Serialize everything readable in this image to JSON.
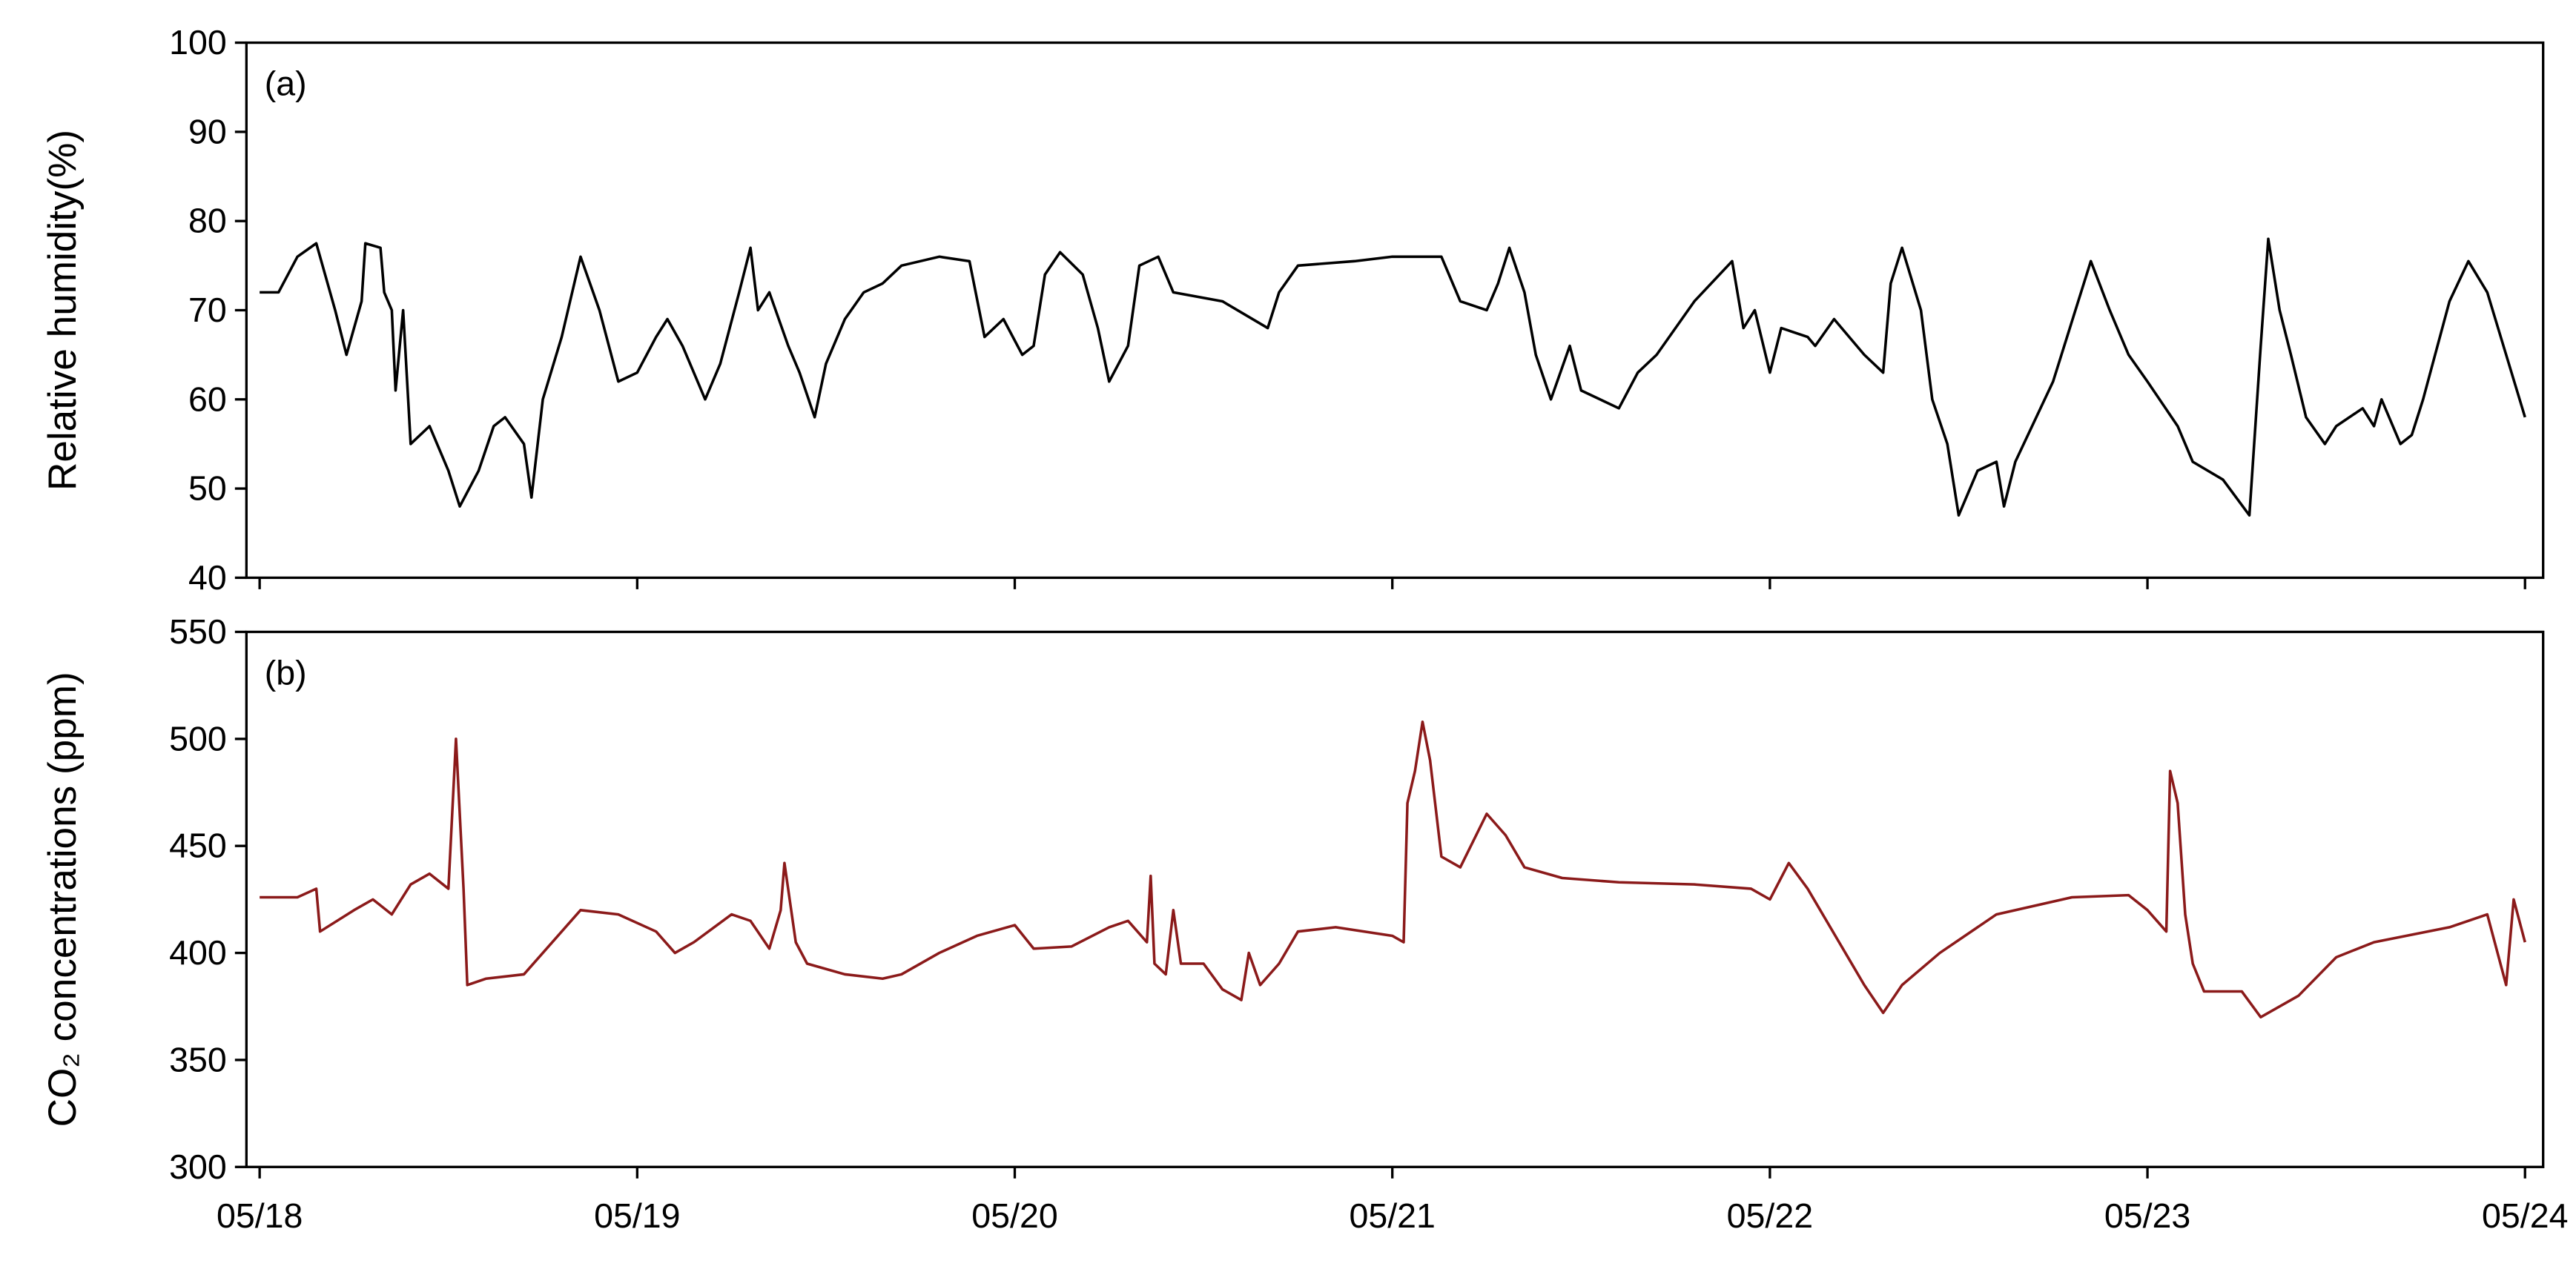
{
  "chart_data": [
    {
      "type": "line",
      "panel_label": "(a)",
      "y_label": "Relative humidity(%)",
      "color": "#000000",
      "xlim": [
        17.965,
        24.048
      ],
      "xticks": [
        18,
        19,
        20,
        21,
        22,
        23,
        24
      ],
      "ylim": [
        40,
        100
      ],
      "yticks": [
        40,
        50,
        60,
        70,
        80,
        90,
        100
      ],
      "x": [
        18.0,
        18.05,
        18.1,
        18.15,
        18.2,
        18.23,
        18.27,
        18.28,
        18.32,
        18.33,
        18.35,
        18.36,
        18.38,
        18.4,
        18.45,
        18.5,
        18.53,
        18.58,
        18.62,
        18.65,
        18.7,
        18.72,
        18.75,
        18.8,
        18.85,
        18.9,
        18.95,
        19.0,
        19.05,
        19.08,
        19.12,
        19.18,
        19.22,
        19.27,
        19.3,
        19.32,
        19.35,
        19.4,
        19.43,
        19.47,
        19.5,
        19.55,
        19.6,
        19.65,
        19.7,
        19.8,
        19.88,
        19.92,
        19.97,
        20.02,
        20.05,
        20.08,
        20.12,
        20.18,
        20.22,
        20.25,
        20.3,
        20.33,
        20.38,
        20.42,
        20.55,
        20.67,
        20.7,
        20.75,
        20.9,
        21.0,
        21.13,
        21.18,
        21.25,
        21.28,
        21.31,
        21.35,
        21.38,
        21.42,
        21.47,
        21.5,
        21.55,
        21.6,
        21.65,
        21.7,
        21.8,
        21.9,
        21.93,
        21.96,
        22.0,
        22.03,
        22.1,
        22.12,
        22.17,
        22.25,
        22.3,
        22.32,
        22.35,
        22.4,
        22.43,
        22.47,
        22.5,
        22.55,
        22.6,
        22.62,
        22.65,
        22.75,
        22.85,
        22.9,
        22.95,
        23.0,
        23.08,
        23.12,
        23.2,
        23.27,
        23.3,
        23.32,
        23.35,
        23.38,
        23.42,
        23.47,
        23.5,
        23.57,
        23.6,
        23.62,
        23.67,
        23.7,
        23.73,
        23.8,
        23.85,
        23.9,
        23.95,
        24.0
      ],
      "values": [
        72,
        72,
        76,
        77.5,
        70,
        65,
        71,
        77.5,
        77,
        72,
        70,
        61,
        70,
        55,
        57,
        52,
        48,
        52,
        57,
        58,
        55,
        49,
        60,
        67,
        76,
        70,
        62,
        63,
        67,
        69,
        66,
        60,
        64,
        72,
        77,
        70,
        72,
        66,
        63,
        58,
        64,
        69,
        72,
        73,
        75,
        76,
        75.5,
        67,
        69,
        65,
        66,
        74,
        76.5,
        74,
        68,
        62,
        66,
        75,
        76,
        72,
        71,
        68,
        72,
        75,
        75.5,
        76,
        76,
        71,
        70,
        73,
        77,
        72,
        65,
        60,
        66,
        61,
        60,
        59,
        63,
        65,
        71,
        75.5,
        68,
        70,
        63,
        68,
        67,
        66,
        69,
        65,
        63,
        73,
        77,
        70,
        60,
        55,
        47,
        52,
        53,
        48,
        53,
        62,
        75.5,
        70,
        65,
        62,
        57,
        53,
        51,
        47,
        66,
        78,
        70,
        65,
        58,
        55,
        57,
        59,
        57,
        60,
        55,
        56,
        60,
        71,
        75.5,
        72,
        65,
        58
      ]
    },
    {
      "type": "line",
      "panel_label": "(b)",
      "y_label": "CO₂ concentrations (ppm)",
      "color": "#8b1a1a",
      "xlim": [
        17.965,
        24.048
      ],
      "xticks": [
        {
          "value": 18,
          "label": "05/18"
        },
        {
          "value": 19,
          "label": "05/19"
        },
        {
          "value": 20,
          "label": "05/20"
        },
        {
          "value": 21,
          "label": "05/21"
        },
        {
          "value": 22,
          "label": "05/22"
        },
        {
          "value": 23,
          "label": "05/23"
        },
        {
          "value": 24,
          "label": "05/24"
        }
      ],
      "ylim": [
        300,
        550
      ],
      "yticks": [
        300,
        350,
        400,
        450,
        500,
        550
      ],
      "x": [
        18.0,
        18.1,
        18.15,
        18.16,
        18.25,
        18.3,
        18.35,
        18.4,
        18.45,
        18.5,
        18.52,
        18.54,
        18.55,
        18.6,
        18.7,
        18.75,
        18.85,
        18.95,
        19.05,
        19.1,
        19.15,
        19.25,
        19.3,
        19.35,
        19.38,
        19.39,
        19.42,
        19.45,
        19.55,
        19.65,
        19.7,
        19.8,
        19.9,
        20.0,
        20.05,
        20.15,
        20.25,
        20.3,
        20.35,
        20.36,
        20.37,
        20.4,
        20.42,
        20.44,
        20.5,
        20.55,
        20.6,
        20.62,
        20.65,
        20.7,
        20.75,
        20.85,
        21.0,
        21.03,
        21.04,
        21.06,
        21.08,
        21.1,
        21.13,
        21.18,
        21.25,
        21.3,
        21.35,
        21.45,
        21.6,
        21.8,
        21.95,
        22.0,
        22.05,
        22.1,
        22.2,
        22.25,
        22.3,
        22.35,
        22.45,
        22.6,
        22.8,
        22.95,
        23.0,
        23.05,
        23.06,
        23.08,
        23.1,
        23.12,
        23.15,
        23.25,
        23.3,
        23.4,
        23.5,
        23.6,
        23.8,
        23.9,
        23.95,
        23.97,
        24.0
      ],
      "values": [
        426,
        426,
        430,
        410,
        420,
        425,
        418,
        432,
        437,
        430,
        500,
        430,
        385,
        388,
        390,
        400,
        420,
        418,
        410,
        400,
        405,
        418,
        415,
        402,
        420,
        442,
        405,
        395,
        390,
        388,
        390,
        400,
        408,
        413,
        402,
        403,
        412,
        415,
        405,
        436,
        395,
        390,
        420,
        395,
        395,
        383,
        378,
        400,
        385,
        395,
        410,
        412,
        408,
        405,
        470,
        485,
        508,
        490,
        445,
        440,
        465,
        455,
        440,
        435,
        433,
        432,
        430,
        425,
        442,
        430,
        400,
        385,
        372,
        385,
        400,
        418,
        426,
        427,
        420,
        410,
        485,
        470,
        418,
        395,
        382,
        382,
        370,
        380,
        398,
        405,
        412,
        418,
        385,
        425,
        405
      ]
    }
  ]
}
